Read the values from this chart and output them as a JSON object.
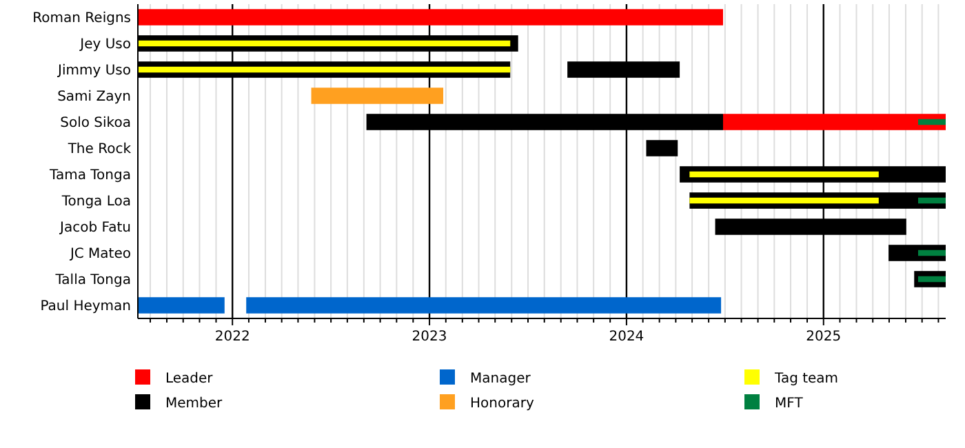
{
  "chart_data": {
    "type": "bar",
    "orientation": "horizontal",
    "categories": [
      "Roman Reigns",
      "Jey Uso",
      "Jimmy Uso",
      "Sami Zayn",
      "Solo Sikoa",
      "The Rock",
      "Tama Tonga",
      "Tonga Loa",
      "Jacob Fatu",
      "JC Mateo",
      "Talla Tonga",
      "Paul Heyman"
    ],
    "series": [
      {
        "name": "Leader",
        "color": "#ff0000",
        "base": [
          2021.52,
          null,
          null,
          null,
          2024.49,
          null,
          null,
          null,
          null,
          null,
          null,
          null
        ],
        "values": [
          2.97,
          null,
          null,
          null,
          1.13,
          null,
          null,
          null,
          null,
          null,
          null,
          null
        ]
      },
      {
        "name": "Member",
        "color": "#000000",
        "base": [
          null,
          2021.52,
          2021.52,
          null,
          2022.68,
          2024.1,
          2024.27,
          2024.32,
          2024.45,
          2025.33,
          2025.46,
          null
        ],
        "values": [
          null,
          1.93,
          1.89,
          null,
          1.81,
          0.16,
          1.35,
          1.3,
          0.97,
          0.29,
          0.16,
          null
        ]
      },
      {
        "color": "#000000",
        "base": [
          null,
          null,
          2023.7,
          null,
          null,
          null,
          null,
          null,
          null,
          null,
          null,
          null
        ],
        "values": [
          null,
          null,
          0.57,
          null,
          null,
          null,
          null,
          null,
          null,
          null,
          null,
          null
        ]
      },
      {
        "name": "Manager",
        "color": "#0066cc",
        "base": [
          null,
          null,
          null,
          null,
          null,
          null,
          null,
          null,
          null,
          null,
          null,
          2021.52
        ],
        "values": [
          null,
          null,
          null,
          null,
          null,
          null,
          null,
          null,
          null,
          null,
          null,
          0.44
        ]
      },
      {
        "color": "#0066cc",
        "base": [
          null,
          null,
          null,
          null,
          null,
          null,
          null,
          null,
          null,
          null,
          null,
          2022.07
        ],
        "values": [
          null,
          null,
          null,
          null,
          null,
          null,
          null,
          null,
          null,
          null,
          null,
          2.41
        ]
      },
      {
        "name": "Honorary",
        "color": "#ffa020",
        "base": [
          null,
          null,
          null,
          2022.4,
          null,
          null,
          null,
          null,
          null,
          null,
          null,
          null
        ],
        "values": [
          null,
          null,
          null,
          0.67,
          null,
          null,
          null,
          null,
          null,
          null,
          null,
          null
        ]
      },
      {
        "name": "Tag team",
        "color": "#ffff00",
        "base": [
          null,
          2021.52,
          2021.52,
          null,
          null,
          null,
          2024.32,
          2024.32,
          null,
          null,
          null,
          null
        ],
        "values": [
          null,
          1.89,
          1.89,
          null,
          null,
          null,
          0.96,
          0.96,
          null,
          null,
          null,
          null
        ]
      },
      {
        "name": "MFT",
        "color": "#008040",
        "base": [
          null,
          null,
          null,
          null,
          2025.48,
          null,
          null,
          2025.48,
          null,
          2025.48,
          2025.48,
          null
        ],
        "values": [
          null,
          null,
          null,
          null,
          0.14,
          null,
          null,
          0.14,
          null,
          0.14,
          0.14,
          null
        ]
      }
    ],
    "xlim": [
      2021.52,
      2025.62
    ],
    "xticks": [
      {
        "value": 2021.583,
        "label": null
      },
      {
        "value": 2021.667,
        "label": null
      },
      {
        "value": 2021.75,
        "label": null
      },
      {
        "value": 2021.833,
        "label": null
      },
      {
        "value": 2021.917,
        "label": null
      },
      2022,
      {
        "value": 2022.083,
        "label": null
      },
      {
        "value": 2022.167,
        "label": null
      },
      {
        "value": 2022.25,
        "label": null
      },
      {
        "value": 2022.333,
        "label": null
      },
      {
        "value": 2022.417,
        "label": null
      },
      {
        "value": 2022.5,
        "label": null
      },
      {
        "value": 2022.583,
        "label": null
      },
      {
        "value": 2022.667,
        "label": null
      },
      {
        "value": 2022.75,
        "label": null
      },
      {
        "value": 2022.833,
        "label": null
      },
      {
        "value": 2022.917,
        "label": null
      },
      2023,
      {
        "value": 2023.083,
        "label": null
      },
      {
        "value": 2023.167,
        "label": null
      },
      {
        "value": 2023.25,
        "label": null
      },
      {
        "value": 2023.333,
        "label": null
      },
      {
        "value": 2023.417,
        "label": null
      },
      {
        "value": 2023.5,
        "label": null
      },
      {
        "value": 2023.583,
        "label": null
      },
      {
        "value": 2023.667,
        "label": null
      },
      {
        "value": 2023.75,
        "label": null
      },
      {
        "value": 2023.833,
        "label": null
      },
      {
        "value": 2023.917,
        "label": null
      },
      2024,
      {
        "value": 2024.083,
        "label": null
      },
      {
        "value": 2024.167,
        "label": null
      },
      {
        "value": 2024.25,
        "label": null
      },
      {
        "value": 2024.333,
        "label": null
      },
      {
        "value": 2024.417,
        "label": null
      },
      {
        "value": 2024.5,
        "label": null
      },
      {
        "value": 2024.583,
        "label": null
      },
      {
        "value": 2024.667,
        "label": null
      },
      {
        "value": 2024.75,
        "label": null
      },
      {
        "value": 2024.833,
        "label": null
      },
      {
        "value": 2024.917,
        "label": null
      },
      2025,
      {
        "value": 2025.083,
        "label": null
      },
      {
        "value": 2025.167,
        "label": null
      },
      {
        "value": 2025.25,
        "label": null
      },
      {
        "value": 2025.333,
        "label": null
      },
      {
        "value": 2025.417,
        "label": null
      },
      {
        "value": 2025.5,
        "label": null
      },
      {
        "value": 2025.583,
        "label": null
      }
    ],
    "grid": "x",
    "legend": "bottom"
  }
}
